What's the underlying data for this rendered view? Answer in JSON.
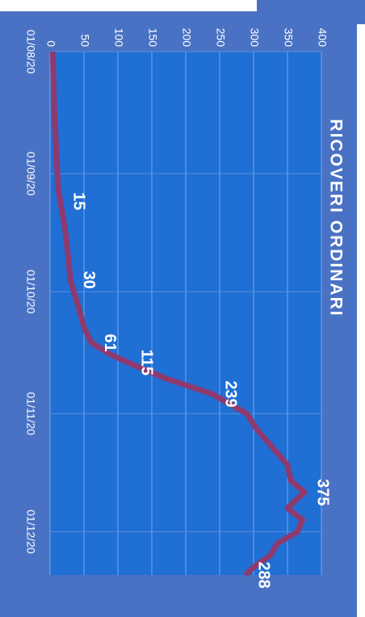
{
  "chart_data": {
    "type": "line",
    "title": "RICOVERI ORDINARI",
    "x": [
      "01/08/20",
      "08/08/20",
      "15/08/20",
      "22/08/20",
      "29/08/20",
      "05/09/20",
      "08/09/20",
      "15/09/20",
      "21/09/20",
      "28/09/20",
      "05/10/20",
      "10/10/20",
      "14/10/20",
      "17/10/20",
      "19/10/20",
      "23/10/20",
      "27/10/20",
      "01/11/20",
      "05/11/20",
      "10/11/20",
      "14/11/20",
      "18/11/20",
      "21/11/20",
      "25/11/20",
      "28/11/20",
      "01/12/20",
      "04/12/20",
      "07/12/20",
      "10/12/20",
      "12/12/20"
    ],
    "series": [
      {
        "name": "Ricoveri ordinari",
        "color": "#8e3a6e",
        "values": [
          4,
          5,
          6,
          8,
          10,
          12,
          15,
          22,
          26,
          30,
          42,
          50,
          61,
          90,
          115,
          170,
          239,
          290,
          305,
          330,
          350,
          355,
          375,
          350,
          372,
          365,
          335,
          325,
          300,
          288
        ],
        "value_labels": [
          null,
          null,
          null,
          null,
          null,
          null,
          "15",
          null,
          null,
          "30",
          null,
          null,
          "61",
          null,
          "115",
          null,
          "239",
          null,
          null,
          null,
          null,
          null,
          "375",
          null,
          null,
          null,
          null,
          null,
          null,
          "288"
        ]
      }
    ],
    "xlim": [
      "01/08/20",
      "12/12/20"
    ],
    "xticks": [
      "01/08/20",
      "01/09/20",
      "01/10/20",
      "01/11/20",
      "01/12/20"
    ],
    "ylim": [
      0,
      400
    ],
    "yticks": [
      0,
      50,
      100,
      150,
      200,
      250,
      300,
      350,
      400
    ],
    "grid": true
  }
}
